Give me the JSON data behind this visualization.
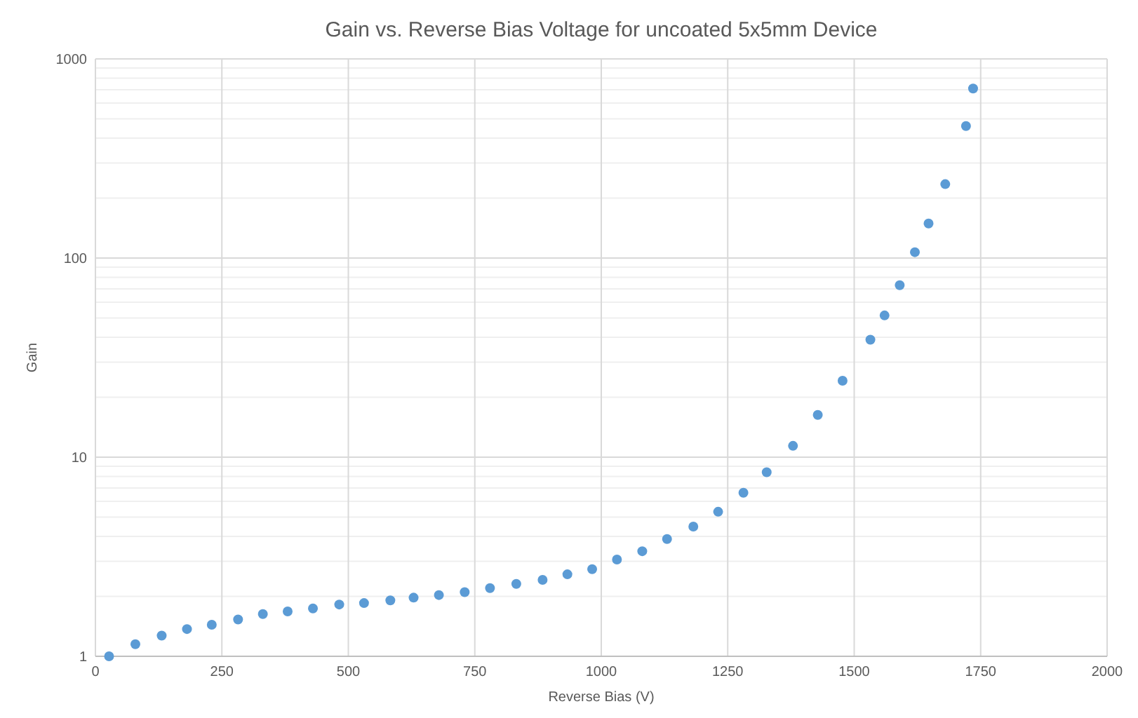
{
  "chart_data": {
    "type": "scatter",
    "title": "Gain vs. Reverse Bias Voltage for uncoated 5x5mm Device",
    "xlabel": "Reverse Bias (V)",
    "ylabel": "Gain",
    "x": [
      27,
      79,
      131,
      181,
      230,
      282,
      331,
      380,
      430,
      482,
      531,
      583,
      629,
      679,
      730,
      780,
      832,
      884,
      933,
      982,
      1031,
      1081,
      1130,
      1182,
      1231,
      1281,
      1327,
      1379,
      1428,
      1477,
      1532,
      1560,
      1590,
      1620,
      1647,
      1680,
      1721,
      1735
    ],
    "series": [
      {
        "color": "#5b9bd5",
        "values": [
          1.0,
          1.15,
          1.27,
          1.37,
          1.44,
          1.53,
          1.63,
          1.68,
          1.74,
          1.82,
          1.85,
          1.91,
          1.97,
          2.03,
          2.1,
          2.2,
          2.31,
          2.42,
          2.58,
          2.74,
          3.06,
          3.37,
          3.88,
          4.48,
          5.32,
          6.63,
          8.4,
          11.4,
          16.3,
          24.2,
          38.9,
          51.5,
          73,
          107,
          149,
          235,
          460,
          710
        ]
      }
    ],
    "xlim": [
      0,
      2000
    ],
    "xticks": [
      0,
      250,
      500,
      750,
      1000,
      1250,
      1500,
      1750,
      2000
    ],
    "ylim": [
      1,
      1000
    ],
    "yticks": [
      1,
      10,
      100,
      1000
    ],
    "log": "y",
    "grid": true,
    "marker": "circle"
  }
}
